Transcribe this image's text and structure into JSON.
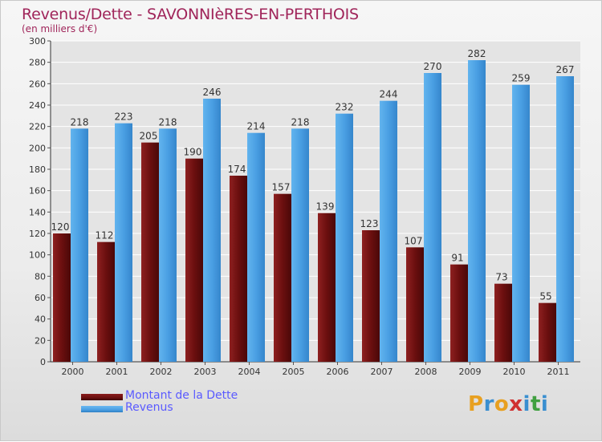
{
  "chart_title": "Revenus/Dette - SAVONNIèRES-EN-PERTHOIS",
  "chart_subtitle": "(en milliers d'€)",
  "colors": {
    "dette": "#6b0f0f",
    "revenus": "#4a9fe3",
    "title": "#a0255a",
    "legend_text": "#5a5aff"
  },
  "legend": {
    "dette": "Montant de la Dette",
    "revenus": "Revenus"
  },
  "logo": {
    "letters": [
      "P",
      "r",
      "o",
      "x",
      "i",
      "t",
      "i"
    ],
    "colors": [
      "#e8a020",
      "#3a8fd0",
      "#e8a020",
      "#d03030",
      "#3a8fd0",
      "#40a040",
      "#3a8fd0"
    ]
  },
  "chart_data": {
    "type": "bar",
    "categories": [
      "2000",
      "2001",
      "2002",
      "2003",
      "2004",
      "2005",
      "2006",
      "2007",
      "2008",
      "2009",
      "2010",
      "2011"
    ],
    "series": [
      {
        "name": "Montant de la Dette",
        "values": [
          120,
          112,
          205,
          190,
          174,
          157,
          139,
          123,
          107,
          91,
          73,
          55
        ]
      },
      {
        "name": "Revenus",
        "values": [
          218,
          223,
          218,
          246,
          214,
          218,
          232,
          244,
          270,
          282,
          259,
          267
        ]
      }
    ],
    "ylim": [
      0,
      300
    ],
    "yticks": [
      0,
      20,
      40,
      60,
      80,
      100,
      120,
      140,
      160,
      180,
      200,
      220,
      240,
      260,
      280,
      300
    ],
    "grid": true,
    "legend_position": "bottom-left"
  }
}
